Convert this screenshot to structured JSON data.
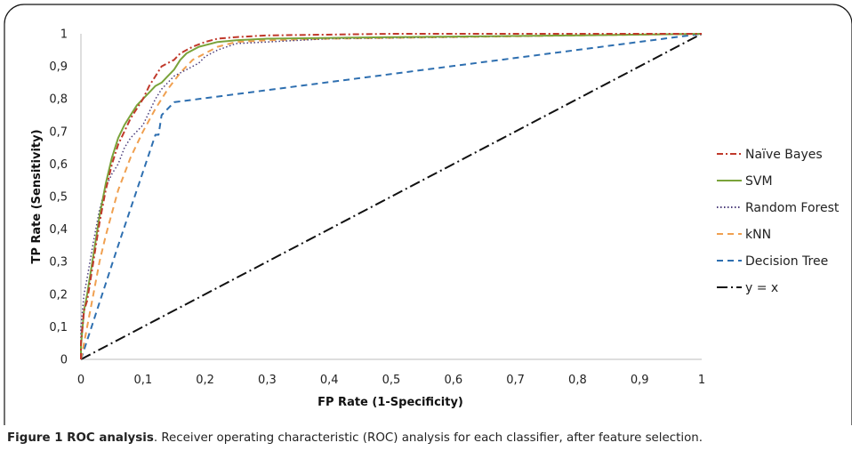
{
  "chart_data": {
    "type": "line",
    "title": "",
    "xlabel": "FP Rate (1-Specificity)",
    "ylabel": "TP Rate (Sensitivity)",
    "xlim": [
      0,
      1
    ],
    "ylim": [
      0,
      1
    ],
    "x_ticks": [
      "0",
      "0,1",
      "0,2",
      "0,3",
      "0,4",
      "0,5",
      "0,6",
      "0,7",
      "0,8",
      "0,9",
      "1"
    ],
    "y_ticks": [
      "0",
      "0,1",
      "0,2",
      "0,3",
      "0,4",
      "0,5",
      "0,6",
      "0,7",
      "0,8",
      "0,9",
      "1"
    ],
    "grid": false,
    "legend_position": "right",
    "series": [
      {
        "name": "Naïve Bayes",
        "color": "#c0392b",
        "dash": "dashdot",
        "points": [
          [
            0,
            0
          ],
          [
            0,
            0.05
          ],
          [
            0.005,
            0.15
          ],
          [
            0.01,
            0.18
          ],
          [
            0.02,
            0.3
          ],
          [
            0.03,
            0.42
          ],
          [
            0.04,
            0.52
          ],
          [
            0.05,
            0.6
          ],
          [
            0.06,
            0.66
          ],
          [
            0.07,
            0.7
          ],
          [
            0.08,
            0.74
          ],
          [
            0.09,
            0.77
          ],
          [
            0.1,
            0.8
          ],
          [
            0.11,
            0.84
          ],
          [
            0.12,
            0.87
          ],
          [
            0.13,
            0.9
          ],
          [
            0.14,
            0.91
          ],
          [
            0.15,
            0.92
          ],
          [
            0.16,
            0.94
          ],
          [
            0.18,
            0.96
          ],
          [
            0.2,
            0.975
          ],
          [
            0.22,
            0.985
          ],
          [
            0.25,
            0.99
          ],
          [
            0.3,
            0.995
          ],
          [
            0.5,
            1.0
          ],
          [
            1,
            1
          ]
        ]
      },
      {
        "name": "SVM",
        "color": "#7aa33a",
        "dash": "solid",
        "points": [
          [
            0,
            0
          ],
          [
            0,
            0.04
          ],
          [
            0.005,
            0.15
          ],
          [
            0.01,
            0.2
          ],
          [
            0.02,
            0.32
          ],
          [
            0.03,
            0.44
          ],
          [
            0.04,
            0.54
          ],
          [
            0.05,
            0.62
          ],
          [
            0.06,
            0.68
          ],
          [
            0.07,
            0.72
          ],
          [
            0.08,
            0.75
          ],
          [
            0.09,
            0.78
          ],
          [
            0.1,
            0.8
          ],
          [
            0.11,
            0.82
          ],
          [
            0.12,
            0.84
          ],
          [
            0.13,
            0.85
          ],
          [
            0.14,
            0.87
          ],
          [
            0.15,
            0.89
          ],
          [
            0.16,
            0.92
          ],
          [
            0.17,
            0.94
          ],
          [
            0.19,
            0.96
          ],
          [
            0.22,
            0.975
          ],
          [
            0.25,
            0.98
          ],
          [
            0.3,
            0.985
          ],
          [
            0.5,
            0.99
          ],
          [
            0.8,
            0.995
          ],
          [
            1,
            1
          ]
        ]
      },
      {
        "name": "Random Forest",
        "color": "#4b3c7a",
        "dash": "dot",
        "points": [
          [
            0,
            0
          ],
          [
            0,
            0.1
          ],
          [
            0.005,
            0.2
          ],
          [
            0.01,
            0.25
          ],
          [
            0.02,
            0.36
          ],
          [
            0.03,
            0.46
          ],
          [
            0.04,
            0.53
          ],
          [
            0.05,
            0.57
          ],
          [
            0.06,
            0.6
          ],
          [
            0.07,
            0.65
          ],
          [
            0.08,
            0.68
          ],
          [
            0.09,
            0.7
          ],
          [
            0.1,
            0.72
          ],
          [
            0.11,
            0.76
          ],
          [
            0.12,
            0.8
          ],
          [
            0.13,
            0.83
          ],
          [
            0.14,
            0.85
          ],
          [
            0.15,
            0.87
          ],
          [
            0.17,
            0.89
          ],
          [
            0.19,
            0.91
          ],
          [
            0.2,
            0.93
          ],
          [
            0.22,
            0.95
          ],
          [
            0.25,
            0.97
          ],
          [
            0.3,
            0.975
          ],
          [
            0.4,
            0.985
          ],
          [
            0.6,
            0.99
          ],
          [
            1,
            1
          ]
        ]
      },
      {
        "name": "kNN",
        "color": "#f0a050",
        "dash": "dash",
        "points": [
          [
            0,
            0
          ],
          [
            0.01,
            0.1
          ],
          [
            0.02,
            0.2
          ],
          [
            0.03,
            0.3
          ],
          [
            0.04,
            0.38
          ],
          [
            0.05,
            0.45
          ],
          [
            0.06,
            0.52
          ],
          [
            0.08,
            0.62
          ],
          [
            0.1,
            0.7
          ],
          [
            0.12,
            0.77
          ],
          [
            0.14,
            0.83
          ],
          [
            0.16,
            0.88
          ],
          [
            0.18,
            0.92
          ],
          [
            0.2,
            0.94
          ],
          [
            0.22,
            0.96
          ],
          [
            0.25,
            0.975
          ],
          [
            0.3,
            0.98
          ],
          [
            0.4,
            0.985
          ],
          [
            0.6,
            0.99
          ],
          [
            1,
            1
          ]
        ]
      },
      {
        "name": "Decision Tree",
        "color": "#2e6fb0",
        "dash": "dash",
        "points": [
          [
            0,
            0
          ],
          [
            0.06,
            0.35
          ],
          [
            0.12,
            0.69
          ],
          [
            0.125,
            0.69
          ],
          [
            0.13,
            0.75
          ],
          [
            0.15,
            0.79
          ],
          [
            1,
            1
          ]
        ]
      },
      {
        "name": "y = x",
        "color": "#111111",
        "dash": "longdashdot",
        "points": [
          [
            0,
            0
          ],
          [
            1,
            1
          ]
        ]
      }
    ]
  },
  "caption": {
    "label": "Figure 1 ROC analysis",
    "text": ". Receiver operating characteristic (ROC) analysis for each classifier, after feature selection."
  }
}
